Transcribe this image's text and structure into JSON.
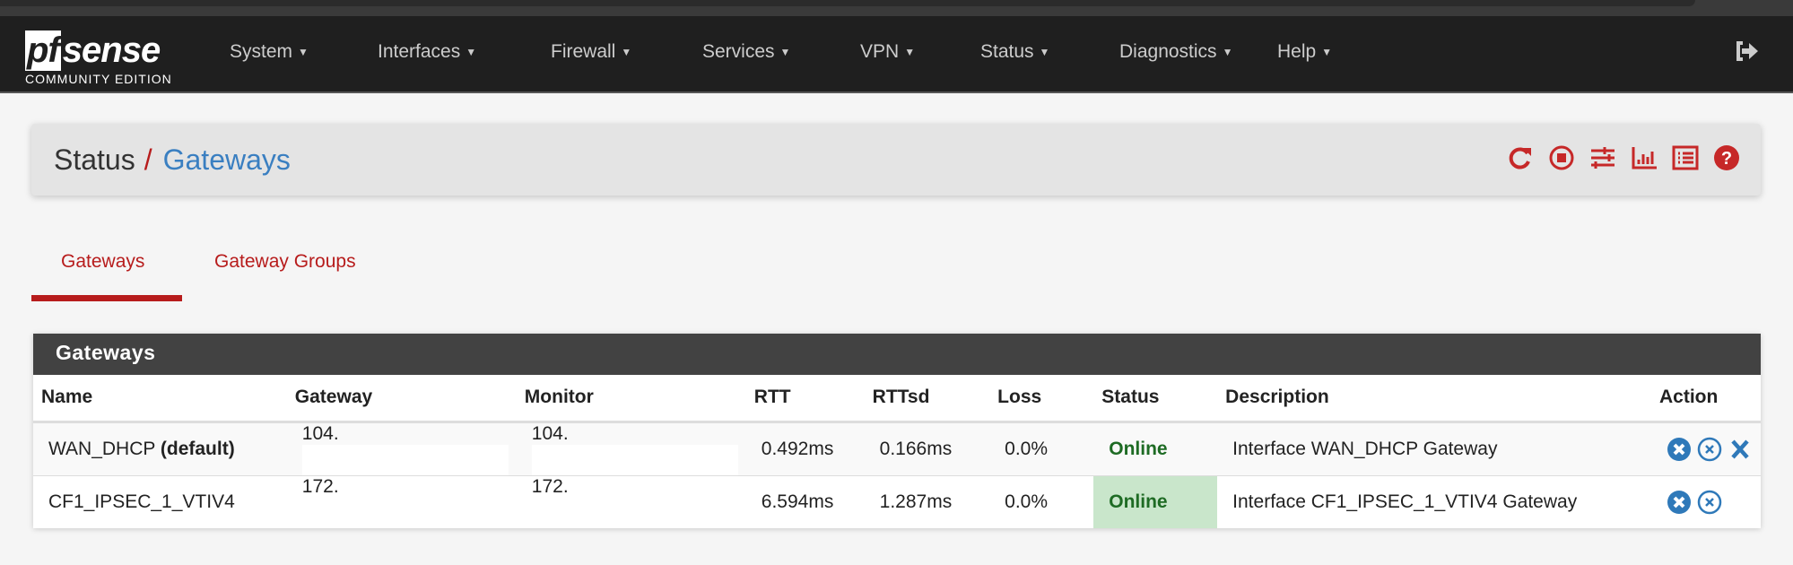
{
  "brand": {
    "logo_text": "pfsense",
    "edition": "COMMUNITY EDITION"
  },
  "nav": {
    "items": [
      "System",
      "Interfaces",
      "Firewall",
      "Services",
      "VPN",
      "Status",
      "Diagnostics",
      "Help"
    ]
  },
  "breadcrumb": {
    "parent": "Status",
    "separator": "/",
    "current": "Gateways"
  },
  "header_icons": [
    "refresh-icon",
    "stop-icon",
    "sliders-icon",
    "chart-icon",
    "list-icon",
    "help-icon"
  ],
  "tabs": [
    {
      "label": "Gateways",
      "active": true
    },
    {
      "label": "Gateway Groups",
      "active": false
    }
  ],
  "panel": {
    "title": "Gateways",
    "columns": [
      "Name",
      "Gateway",
      "Monitor",
      "RTT",
      "RTTsd",
      "Loss",
      "Status",
      "Description",
      "Action"
    ],
    "rows": [
      {
        "name": "WAN_DHCP",
        "name_suffix": "(default)",
        "gateway": "104.",
        "monitor": "104.",
        "rtt": "0.492ms",
        "rttsd": "0.166ms",
        "loss": "0.0%",
        "status": "Online",
        "description": "Interface WAN_DHCP Gateway",
        "actions": [
          "mark-down-icon",
          "disable-icon",
          "delete-icon"
        ]
      },
      {
        "name": "CF1_IPSEC_1_VTIV4",
        "name_suffix": "",
        "gateway": "172.",
        "monitor": "172.",
        "rtt": "6.594ms",
        "rttsd": "1.287ms",
        "loss": "0.0%",
        "status": "Online",
        "description": "Interface CF1_IPSEC_1_VTIV4 Gateway",
        "actions": [
          "mark-down-icon",
          "disable-icon"
        ]
      }
    ]
  },
  "colors": {
    "accent": "#b71c1c",
    "link": "#3a7fc1",
    "online_bg": "#c9e6cb",
    "online_text": "#1e6b24",
    "action": "#2f79b9"
  }
}
